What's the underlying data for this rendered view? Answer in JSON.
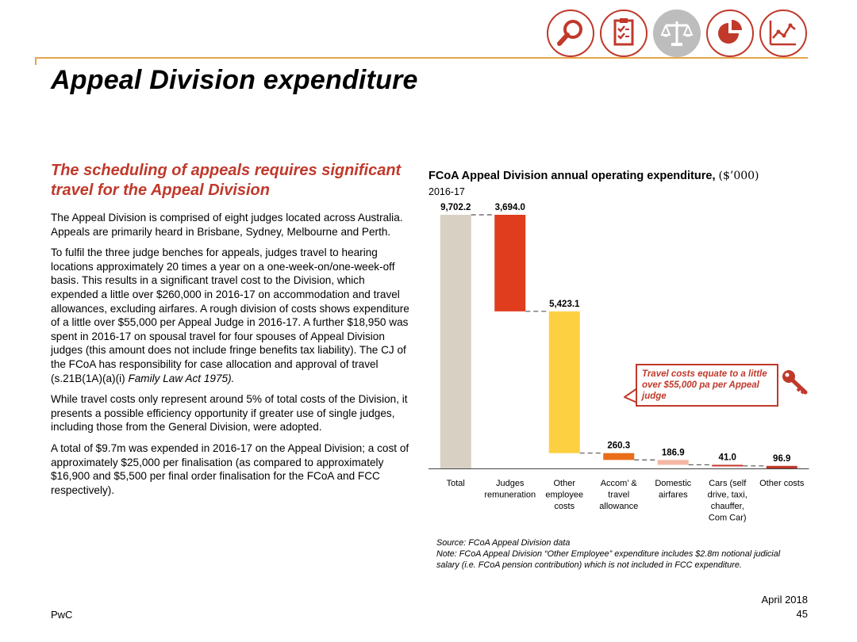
{
  "header": {
    "icons": [
      "magnifier-icon",
      "clipboard-checklist-icon",
      "scales-icon",
      "pie-chart-icon",
      "line-chart-icon"
    ],
    "active_icon": "scales-icon",
    "accent_color": "#c0392b",
    "rule_color": "#e5a54b"
  },
  "page": {
    "title": "Appeal Division expenditure",
    "subtitle": "The scheduling of appeals requires significant travel for the Appeal Division",
    "paragraphs": [
      "The Appeal Division is comprised of eight judges located across Australia. Appeals are primarily heard in Brisbane, Sydney, Melbourne and Perth.",
      "To fulfil the three judge benches for appeals, judges travel to hearing locations approximately 20 times a year on a one-week-on/one-week-off basis. This results in a significant travel cost to the Division, which expended a little over $260,000 in 2016-17 on accommodation and travel allowances, excluding airfares. A rough division of costs shows expenditure of a little over $55,000 per Appeal Judge in 2016-17.  A further $18,950 was spent in 2016-17 on spousal travel for four spouses of Appeal Division judges (this amount does not include fringe benefits tax liability). The CJ of the FCoA has responsibility for case allocation and approval of travel (s.21B(1A)(a)(i) ",
      "While travel costs only represent around 5% of total costs of the Division, it presents a possible efficiency opportunity if greater use of single judges, including those from the General Division, were adopted.",
      "A total of $9.7m was expended in 2016-17 on the Appeal Division; a cost of approximately $25,000 per finalisation (as compared to approximately $16,900 and $5,500 per final order finalisation for the FCoA and FCC respectively)."
    ],
    "paragraph2_italic": "Family Law Act 1975).",
    "footer_left": "PwC",
    "footer_date": "April 2018",
    "page_number": "45"
  },
  "chart_data": {
    "type": "waterfall",
    "title": "FCoA Appeal Division annual operating expenditure,",
    "title_unit": "($’000)",
    "subtitle": "2016-17",
    "categories": [
      [
        "Total"
      ],
      [
        "Judges",
        "remuneration"
      ],
      [
        "Other",
        "employee",
        "costs"
      ],
      [
        "Accom’ &",
        "travel",
        "allowance"
      ],
      [
        "Domestic",
        "airfares"
      ],
      [
        "Cars (self",
        "drive, taxi,",
        "chauffer,",
        "Com Car)"
      ],
      [
        "Other costs"
      ]
    ],
    "values": [
      9702.2,
      3694.0,
      5423.1,
      260.3,
      186.9,
      41.0,
      96.9
    ],
    "value_labels": [
      "9,702.2",
      "3,694.0",
      "5,423.1",
      "260.3",
      "186.9",
      "41.0",
      "96.9"
    ],
    "colors": [
      "#d9d0c4",
      "#e03c1e",
      "#fdd042",
      "#ea6d1a",
      "#f4b7a4",
      "#c0392b",
      "#c0392b"
    ],
    "ylim": [
      0,
      9702.2
    ],
    "grid": false,
    "legend": "none",
    "callout": "Travel costs equate to a little over $55,000 pa per Appeal judge"
  },
  "source": {
    "source_line": "Source: FCoA Appeal Division data",
    "note_line": "Note: FCoA Appeal Division “Other Employee” expenditure includes $2.8m notional judicial salary (i.e. FCoA pension contribution) which is not included in FCC expenditure."
  }
}
